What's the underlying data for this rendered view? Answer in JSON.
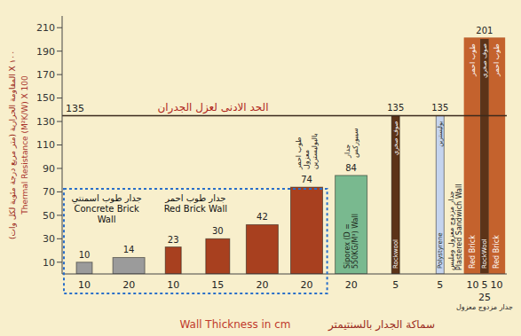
{
  "chart_data": {
    "type": "bar",
    "y_label": "Thermal Resistance (M²K/W) X 100",
    "y_label_ar": "المقاومة الحرارية (متر مربع درجة مئوية لكل وات) X ١٠٠",
    "x_label": "Wall Thickness in cm",
    "x_label_ar": "سماكة الجدار بالسنتيمتر",
    "categories": [
      "10",
      "20",
      "10",
      "15",
      "20",
      "20",
      "20",
      "5",
      "5",
      "25"
    ],
    "values": [
      10,
      14,
      23,
      30,
      42,
      74,
      84,
      135,
      135,
      201
    ],
    "colors": [
      "#9b9b9b",
      "#9b9b9b",
      "#a8401f",
      "#a8401f",
      "#a8401f",
      "#a8401f",
      "#79b98f",
      "#5c3318",
      "#c5d4ee",
      "#c4622d"
    ],
    "bar_labels": [
      null,
      null,
      null,
      null,
      null,
      null,
      "Siporex (D = 550KG/M³) Wall",
      "Rockwool",
      "Polystyrene",
      "Plastered Sandwich Wall"
    ],
    "bar_labels_ar": [
      null,
      null,
      null,
      null,
      null,
      "طوب احمر معزول بالبوليسترين",
      "جدار سيبوركس",
      "صوف صخري",
      "بوليسترين",
      "جدار مزدوج معزول وملبس"
    ],
    "layers": [
      null,
      null,
      null,
      null,
      null,
      null,
      null,
      null,
      null,
      [
        {
          "thickness": 10,
          "label": "Red Brick",
          "label_ar": "طوب احمر",
          "color": "#c4622d"
        },
        {
          "thickness": 5,
          "label": "RockWool",
          "label_ar": "صوف صخري",
          "color": "#5c3318"
        },
        {
          "thickness": 10,
          "label": "Red Brick",
          "label_ar": "طوب احمر",
          "color": "#c4622d"
        }
      ]
    ],
    "category_notes": [
      null,
      null,
      null,
      null,
      null,
      null,
      null,
      null,
      null,
      "جدار مزدوج معزول"
    ],
    "groups": [
      {
        "name": "Concrete Brick Wall",
        "name_ar": "جدار طوب اسمنتي",
        "members": [
          0,
          1
        ]
      },
      {
        "name": "Red Brick Wall",
        "name_ar": "جدار طوب احمر",
        "members": [
          2,
          3,
          4,
          5
        ]
      }
    ],
    "reference_line": {
      "value": 135,
      "label": "الحد الادنى لعزل الجدران"
    },
    "ylim": [
      0,
      220
    ],
    "yticks": [
      10,
      30,
      50,
      70,
      90,
      110,
      130,
      150,
      170,
      190,
      210
    ],
    "data_labels": true,
    "grid": false
  }
}
